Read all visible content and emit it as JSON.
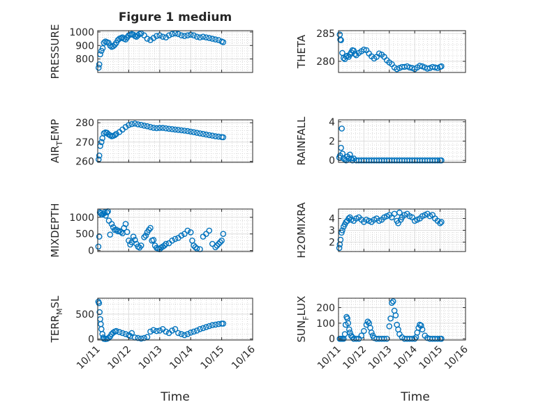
{
  "chart_data": {
    "type": "scatter",
    "title": "Figure 1 medium",
    "xlabel": "Time",
    "x_ticks": [
      "10/11",
      "10/12",
      "10/13",
      "10/14",
      "10/15",
      "10/16"
    ],
    "xlim": [
      "10/11",
      "10/16"
    ],
    "marker_color": "#0072BD",
    "grid": true,
    "panels": [
      {
        "ylabel": "PRESSURE",
        "ylabel_main": "PRESSURE",
        "ylabel_sub": "",
        "ylabel_tail": "",
        "ylim": [
          700,
          1010
        ],
        "yticks": [
          800,
          900,
          1000
        ],
        "x": [
          0.03,
          0.05,
          0.08,
          0.12,
          0.16,
          0.2,
          0.25,
          0.3,
          0.35,
          0.4,
          0.45,
          0.5,
          0.55,
          0.6,
          0.65,
          0.7,
          0.75,
          0.8,
          0.85,
          0.9,
          0.95,
          1.0,
          1.05,
          1.1,
          1.15,
          1.2,
          1.25,
          1.3,
          1.35,
          1.4,
          1.5,
          1.6,
          1.7,
          1.8,
          1.9,
          2.0,
          2.1,
          2.2,
          2.3,
          2.4,
          2.5,
          2.6,
          2.7,
          2.8,
          2.9,
          3.0,
          3.1,
          3.2,
          3.3,
          3.4,
          3.5,
          3.6,
          3.7,
          3.8,
          3.9,
          4.0,
          4.05
        ],
        "y": [
          735,
          760,
          835,
          860,
          880,
          920,
          930,
          925,
          920,
          900,
          890,
          895,
          905,
          920,
          940,
          950,
          955,
          960,
          950,
          945,
          960,
          975,
          980,
          985,
          980,
          970,
          965,
          975,
          985,
          990,
          975,
          950,
          940,
          955,
          970,
          975,
          965,
          960,
          975,
          985,
          990,
          985,
          975,
          970,
          975,
          980,
          975,
          965,
          960,
          965,
          960,
          955,
          950,
          945,
          940,
          930,
          925
        ]
      },
      {
        "ylabel": "THETA",
        "ylabel_main": "THETA",
        "ylabel_sub": "",
        "ylabel_tail": "",
        "ylim": [
          278,
          285.5
        ],
        "yticks": [
          280,
          285
        ],
        "x": [
          0.05,
          0.07,
          0.1,
          0.15,
          0.2,
          0.25,
          0.3,
          0.35,
          0.4,
          0.45,
          0.5,
          0.55,
          0.6,
          0.65,
          0.7,
          0.8,
          0.9,
          1.0,
          1.1,
          1.2,
          1.3,
          1.4,
          1.5,
          1.6,
          1.7,
          1.8,
          1.9,
          2.0,
          2.1,
          2.2,
          2.3,
          2.4,
          2.5,
          2.6,
          2.7,
          2.8,
          2.9,
          3.0,
          3.1,
          3.2,
          3.3,
          3.4,
          3.5,
          3.6,
          3.7,
          3.8,
          3.9,
          4.0,
          4.05
        ],
        "y": [
          284.8,
          283.9,
          283.8,
          281.5,
          280.6,
          280.4,
          280.9,
          281.0,
          280.8,
          281.2,
          281.6,
          282.0,
          281.9,
          281.3,
          281.1,
          281.5,
          281.8,
          282.1,
          282.0,
          281.4,
          280.9,
          280.5,
          280.8,
          281.4,
          281.2,
          280.8,
          280.2,
          279.8,
          279.5,
          278.9,
          278.6,
          278.8,
          279.0,
          279.0,
          279.1,
          278.9,
          278.8,
          278.6,
          278.9,
          279.2,
          279.1,
          278.9,
          278.7,
          278.8,
          279.0,
          278.9,
          278.8,
          279.0,
          279.1
        ]
      },
      {
        "ylabel": "AIR_TEMP",
        "ylabel_main": "AIR",
        "ylabel_sub": "T",
        "ylabel_tail": "EMP",
        "ylim": [
          259.5,
          281.5
        ],
        "yticks": [
          260,
          270,
          280
        ],
        "x": [
          0.03,
          0.05,
          0.08,
          0.12,
          0.15,
          0.2,
          0.25,
          0.3,
          0.35,
          0.4,
          0.45,
          0.5,
          0.55,
          0.6,
          0.7,
          0.8,
          0.9,
          1.0,
          1.1,
          1.2,
          1.3,
          1.4,
          1.5,
          1.6,
          1.7,
          1.8,
          1.9,
          2.0,
          2.1,
          2.2,
          2.3,
          2.4,
          2.5,
          2.6,
          2.7,
          2.8,
          2.9,
          3.0,
          3.1,
          3.2,
          3.3,
          3.4,
          3.5,
          3.6,
          3.7,
          3.8,
          3.9,
          4.0,
          4.05
        ],
        "y": [
          261,
          263,
          268,
          270,
          272,
          274.5,
          275,
          274.8,
          274,
          273.5,
          273,
          273.2,
          273.6,
          274.2,
          275.2,
          276.5,
          277.8,
          278.8,
          279.3,
          279.6,
          279.2,
          278.9,
          278.5,
          278.2,
          277.8,
          277.4,
          277.2,
          277.3,
          277.3,
          277.1,
          276.9,
          276.7,
          276.5,
          276.3,
          276.1,
          275.9,
          275.7,
          275.4,
          275.1,
          274.8,
          274.5,
          274.2,
          273.9,
          273.6,
          273.3,
          273.0,
          272.8,
          272.6,
          272.5
        ]
      },
      {
        "ylabel": "RAINFALL",
        "ylabel_main": "RAINFALL",
        "ylabel_sub": "",
        "ylabel_tail": "",
        "ylim": [
          -0.2,
          4.2
        ],
        "yticks": [
          0,
          2,
          4
        ],
        "x": [
          0.03,
          0.06,
          0.1,
          0.13,
          0.16,
          0.2,
          0.25,
          0.3,
          0.35,
          0.4,
          0.45,
          0.5,
          0.55,
          0.6,
          0.7,
          0.8,
          0.9,
          1.0,
          1.1,
          1.2,
          1.3,
          1.4,
          1.5,
          1.6,
          1.7,
          1.8,
          1.9,
          2.0,
          2.1,
          2.2,
          2.3,
          2.4,
          2.5,
          2.6,
          2.7,
          2.8,
          2.9,
          3.0,
          3.1,
          3.2,
          3.3,
          3.4,
          3.5,
          3.6,
          3.7,
          3.8,
          3.9,
          4.0,
          4.05
        ],
        "y": [
          0.3,
          0.5,
          1.3,
          3.3,
          0.7,
          0.2,
          0.1,
          0,
          0.4,
          0.2,
          0.6,
          0.2,
          0,
          0.2,
          0,
          0,
          0,
          0,
          0,
          0,
          0,
          0,
          0,
          0,
          0,
          0,
          0,
          0,
          0,
          0,
          0,
          0,
          0,
          0,
          0,
          0,
          0,
          0,
          0,
          0,
          0,
          0,
          0,
          0,
          0,
          0,
          0,
          0,
          0
        ]
      },
      {
        "ylabel": "MIXDEPTH",
        "ylabel_main": "MIXDEPTH",
        "ylabel_sub": "",
        "ylabel_tail": "",
        "ylim": [
          -30,
          1250
        ],
        "yticks": [
          0,
          500,
          1000
        ],
        "x": [
          0.02,
          0.05,
          0.07,
          0.1,
          0.13,
          0.18,
          0.22,
          0.26,
          0.3,
          0.33,
          0.36,
          0.4,
          0.45,
          0.5,
          0.55,
          0.6,
          0.65,
          0.7,
          0.75,
          0.8,
          0.85,
          0.9,
          0.95,
          1.0,
          1.05,
          1.1,
          1.15,
          1.2,
          1.25,
          1.3,
          1.35,
          1.4,
          1.5,
          1.55,
          1.6,
          1.65,
          1.7,
          1.75,
          1.8,
          1.85,
          1.9,
          1.95,
          2.0,
          2.05,
          2.1,
          2.15,
          2.2,
          2.3,
          2.4,
          2.5,
          2.6,
          2.7,
          2.8,
          2.9,
          3.0,
          3.05,
          3.1,
          3.15,
          3.2,
          3.3,
          3.4,
          3.5,
          3.6,
          3.7,
          3.8,
          3.85,
          3.9,
          3.95,
          4.0,
          4.05
        ],
        "y": [
          120,
          420,
          1150,
          1120,
          1080,
          1100,
          1150,
          1050,
          1150,
          1180,
          900,
          480,
          800,
          700,
          620,
          630,
          580,
          590,
          560,
          520,
          680,
          800,
          560,
          300,
          180,
          250,
          420,
          320,
          200,
          120,
          90,
          150,
          400,
          450,
          550,
          620,
          680,
          300,
          320,
          150,
          80,
          60,
          40,
          90,
          120,
          150,
          200,
          220,
          300,
          350,
          380,
          450,
          500,
          600,
          550,
          300,
          150,
          100,
          60,
          40,
          420,
          500,
          600,
          200,
          100,
          150,
          200,
          250,
          300,
          500
        ]
      },
      {
        "ylabel": "H2OMIXRA",
        "ylabel_main": "H2OMIXRA",
        "ylabel_sub": "",
        "ylabel_tail": "",
        "ylim": [
          1.2,
          4.8
        ],
        "yticks": [
          2,
          3,
          4
        ],
        "x": [
          0.03,
          0.05,
          0.08,
          0.12,
          0.15,
          0.2,
          0.25,
          0.3,
          0.35,
          0.4,
          0.45,
          0.5,
          0.6,
          0.7,
          0.8,
          0.9,
          1.0,
          1.1,
          1.2,
          1.3,
          1.4,
          1.5,
          1.6,
          1.7,
          1.8,
          1.9,
          2.0,
          2.1,
          2.2,
          2.3,
          2.35,
          2.4,
          2.45,
          2.5,
          2.6,
          2.7,
          2.8,
          2.9,
          3.0,
          3.1,
          3.2,
          3.3,
          3.4,
          3.5,
          3.6,
          3.7,
          3.8,
          3.9,
          4.0,
          4.05
        ],
        "y": [
          1.5,
          1.8,
          2.2,
          2.8,
          3.0,
          3.3,
          3.5,
          3.7,
          3.8,
          4.0,
          4.1,
          3.9,
          3.8,
          4.0,
          4.1,
          3.9,
          3.7,
          3.9,
          3.8,
          3.7,
          3.9,
          4.0,
          3.8,
          3.9,
          4.1,
          4.2,
          4.3,
          4.1,
          4.4,
          3.8,
          3.6,
          4.5,
          3.9,
          4.1,
          4.3,
          4.4,
          4.2,
          4.1,
          3.8,
          3.9,
          4.0,
          4.2,
          4.3,
          4.4,
          4.2,
          4.3,
          4.0,
          3.8,
          3.6,
          3.7
        ]
      },
      {
        "ylabel": "TERR_MSL",
        "ylabel_main": "TERR",
        "ylabel_sub": "M",
        "ylabel_tail": "SL",
        "ylim": [
          -20,
          820
        ],
        "yticks": [
          0,
          500
        ],
        "x": [
          0.02,
          0.04,
          0.06,
          0.08,
          0.1,
          0.12,
          0.15,
          0.18,
          0.2,
          0.25,
          0.3,
          0.35,
          0.4,
          0.45,
          0.5,
          0.55,
          0.6,
          0.7,
          0.8,
          0.9,
          1.0,
          1.05,
          1.1,
          1.2,
          1.3,
          1.4,
          1.5,
          1.6,
          1.7,
          1.8,
          1.9,
          2.0,
          2.1,
          2.2,
          2.3,
          2.4,
          2.5,
          2.6,
          2.7,
          2.8,
          2.9,
          3.0,
          3.1,
          3.2,
          3.3,
          3.4,
          3.5,
          3.6,
          3.7,
          3.8,
          3.9,
          4.0,
          4.05
        ],
        "y": [
          750,
          720,
          540,
          400,
          300,
          200,
          100,
          30,
          5,
          0,
          5,
          20,
          50,
          100,
          130,
          150,
          160,
          140,
          120,
          100,
          80,
          60,
          120,
          30,
          20,
          10,
          20,
          40,
          150,
          180,
          160,
          170,
          200,
          150,
          120,
          170,
          200,
          120,
          100,
          80,
          100,
          130,
          150,
          170,
          200,
          220,
          240,
          260,
          280,
          290,
          300,
          310,
          310
        ]
      },
      {
        "ylabel": "SUN_FLUX",
        "ylabel_main": "SUN",
        "ylabel_sub": "F",
        "ylabel_tail": "LUX",
        "ylim": [
          -8,
          260
        ],
        "yticks": [
          0,
          100,
          200
        ],
        "x": [
          0.05,
          0.1,
          0.15,
          0.2,
          0.25,
          0.28,
          0.32,
          0.35,
          0.38,
          0.42,
          0.45,
          0.5,
          0.55,
          0.6,
          0.7,
          0.8,
          0.9,
          1.0,
          1.1,
          1.15,
          1.2,
          1.25,
          1.3,
          1.35,
          1.4,
          1.5,
          1.6,
          1.7,
          1.8,
          1.9,
          2.0,
          2.05,
          2.1,
          2.15,
          2.2,
          2.25,
          2.3,
          2.35,
          2.4,
          2.5,
          2.6,
          2.7,
          2.8,
          2.9,
          3.0,
          3.05,
          3.1,
          3.15,
          3.2,
          3.25,
          3.3,
          3.4,
          3.5,
          3.6,
          3.7,
          3.8,
          3.9,
          4.0,
          4.05
        ],
        "y": [
          0,
          0,
          0,
          0,
          30,
          90,
          140,
          130,
          100,
          60,
          40,
          20,
          10,
          0,
          0,
          0,
          20,
          50,
          90,
          110,
          100,
          70,
          40,
          20,
          5,
          0,
          0,
          0,
          0,
          0,
          80,
          130,
          230,
          240,
          180,
          150,
          90,
          60,
          30,
          10,
          0,
          0,
          0,
          0,
          0,
          10,
          40,
          70,
          90,
          85,
          60,
          20,
          5,
          0,
          0,
          0,
          0,
          0,
          0
        ]
      }
    ]
  }
}
